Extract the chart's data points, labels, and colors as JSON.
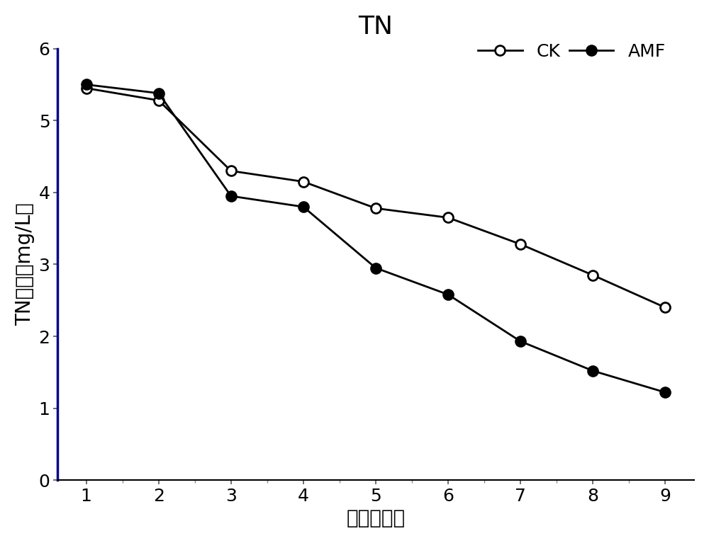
{
  "title": "TN",
  "xlabel": "时间（天）",
  "ylabel": "TN浓度（mg/L）",
  "x": [
    1,
    2,
    3,
    4,
    5,
    6,
    7,
    8,
    9
  ],
  "CK": [
    5.45,
    5.28,
    4.3,
    4.15,
    3.78,
    3.65,
    3.28,
    2.85,
    2.4
  ],
  "AMF": [
    5.5,
    5.38,
    3.95,
    3.8,
    2.95,
    2.58,
    1.93,
    1.52,
    1.22
  ],
  "ylim": [
    0,
    6
  ],
  "yticks": [
    0,
    1,
    2,
    3,
    4,
    5,
    6
  ],
  "xticks": [
    1,
    2,
    3,
    4,
    5,
    6,
    7,
    8,
    9
  ],
  "line_color": "#000000",
  "title_fontsize": 26,
  "label_fontsize": 20,
  "tick_fontsize": 18,
  "legend_fontsize": 18,
  "left_spine_color": "#00008B",
  "marker_size": 10,
  "line_width": 2.0
}
